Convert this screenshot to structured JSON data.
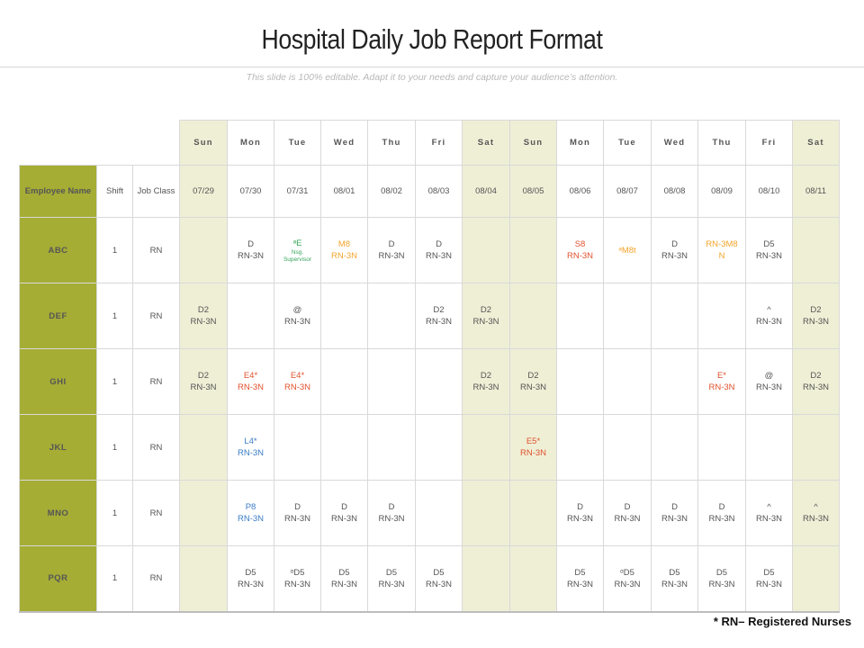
{
  "title": "Hospital Daily Job Report Format",
  "subtitle": "This slide is 100% editable. Adapt it to your needs and capture your audience’s attention.",
  "table": {
    "days": [
      "Sun",
      "Mon",
      "Tue",
      "Wed",
      "Thu",
      "Fri",
      "Sat",
      "Sun",
      "Mon",
      "Tue",
      "Wed",
      "Thu",
      "Fri",
      "Sat"
    ],
    "dates": [
      "07/29",
      "07/30",
      "07/31",
      "08/01",
      "08/02",
      "08/03",
      "08/04",
      "08/05",
      "08/06",
      "08/07",
      "08/08",
      "08/09",
      "08/10",
      "08/11"
    ],
    "weekend_cols": [
      0,
      6,
      7,
      13
    ],
    "header": {
      "employee": "Employee Name",
      "shift": "Shift",
      "job_class": "Job Class"
    },
    "rows": [
      {
        "name": "ABC",
        "shift": "1",
        "class": "RN",
        "cells": [
          [],
          [
            {
              "t": "D",
              "c": "gray"
            },
            {
              "t": "RN-3N",
              "c": "gray"
            }
          ],
          [
            {
              "t": "ᵃE",
              "c": "green"
            },
            {
              "t": "Nsg.",
              "c": "green",
              "s": "tiny"
            },
            {
              "t": "Supervisor",
              "c": "green",
              "s": "tiny"
            }
          ],
          [
            {
              "t": "M8",
              "c": "orange"
            },
            {
              "t": "RN-3N",
              "c": "orange"
            }
          ],
          [
            {
              "t": "D",
              "c": "gray"
            },
            {
              "t": "RN-3N",
              "c": "gray"
            }
          ],
          [
            {
              "t": "D",
              "c": "gray"
            },
            {
              "t": "RN-3N",
              "c": "gray"
            }
          ],
          [],
          [],
          [
            {
              "t": "S8",
              "c": "red"
            },
            {
              "t": "RN-3N",
              "c": "red"
            }
          ],
          [
            {
              "t": "ᵃM8t",
              "c": "orange"
            }
          ],
          [
            {
              "t": "D",
              "c": "gray"
            },
            {
              "t": "RN-3N",
              "c": "gray"
            }
          ],
          [
            {
              "t": "RN-3M8",
              "c": "orange"
            },
            {
              "t": "N",
              "c": "orange"
            }
          ],
          [
            {
              "t": "D5",
              "c": "gray"
            },
            {
              "t": "RN-3N",
              "c": "gray"
            }
          ],
          []
        ]
      },
      {
        "name": "DEF",
        "shift": "1",
        "class": "RN",
        "cells": [
          [
            {
              "t": "D2",
              "c": "gray"
            },
            {
              "t": "RN-3N",
              "c": "gray"
            }
          ],
          [],
          [
            {
              "t": "@",
              "c": "gray"
            },
            {
              "t": "RN-3N",
              "c": "gray"
            }
          ],
          [],
          [],
          [
            {
              "t": "D2",
              "c": "gray"
            },
            {
              "t": "RN-3N",
              "c": "gray"
            }
          ],
          [
            {
              "t": "D2",
              "c": "gray"
            },
            {
              "t": "RN-3N",
              "c": "gray"
            }
          ],
          [],
          [],
          [],
          [],
          [],
          [
            {
              "t": "^",
              "c": "gray"
            },
            {
              "t": "RN-3N",
              "c": "gray"
            }
          ],
          [
            {
              "t": "D2",
              "c": "gray"
            },
            {
              "t": "RN-3N",
              "c": "gray"
            }
          ]
        ]
      },
      {
        "name": "GHI",
        "shift": "1",
        "class": "RN",
        "cells": [
          [
            {
              "t": "D2",
              "c": "gray"
            },
            {
              "t": "RN-3N",
              "c": "gray"
            }
          ],
          [
            {
              "t": "E4*",
              "c": "red"
            },
            {
              "t": "RN-3N",
              "c": "red"
            }
          ],
          [
            {
              "t": "E4*",
              "c": "red"
            },
            {
              "t": "RN-3N",
              "c": "red"
            }
          ],
          [],
          [],
          [],
          [
            {
              "t": "D2",
              "c": "gray"
            },
            {
              "t": "RN-3N",
              "c": "gray"
            }
          ],
          [
            {
              "t": "D2",
              "c": "gray"
            },
            {
              "t": "RN-3N",
              "c": "gray"
            }
          ],
          [],
          [],
          [],
          [
            {
              "t": "E*",
              "c": "red"
            },
            {
              "t": "RN-3N",
              "c": "red"
            }
          ],
          [
            {
              "t": "@",
              "c": "gray"
            },
            {
              "t": "RN-3N",
              "c": "gray"
            }
          ],
          [
            {
              "t": "D2",
              "c": "gray"
            },
            {
              "t": "RN-3N",
              "c": "gray"
            }
          ]
        ]
      },
      {
        "name": "JKL",
        "shift": "1",
        "class": "RN",
        "cells": [
          [],
          [
            {
              "t": "L4*",
              "c": "blue"
            },
            {
              "t": "RN-3N",
              "c": "blue"
            }
          ],
          [],
          [],
          [],
          [],
          [],
          [
            {
              "t": "E5*",
              "c": "red"
            },
            {
              "t": "RN-3N",
              "c": "red"
            }
          ],
          [],
          [],
          [],
          [],
          [],
          []
        ]
      },
      {
        "name": "MNO",
        "shift": "1",
        "class": "RN",
        "cells": [
          [],
          [
            {
              "t": "P8",
              "c": "blue"
            },
            {
              "t": "RN-3N",
              "c": "blue"
            }
          ],
          [
            {
              "t": "D",
              "c": "gray"
            },
            {
              "t": "RN-3N",
              "c": "gray"
            }
          ],
          [
            {
              "t": "D",
              "c": "gray"
            },
            {
              "t": "RN-3N",
              "c": "gray"
            }
          ],
          [
            {
              "t": "D",
              "c": "gray"
            },
            {
              "t": "RN-3N",
              "c": "gray"
            }
          ],
          [],
          [],
          [],
          [
            {
              "t": "D",
              "c": "gray"
            },
            {
              "t": "RN-3N",
              "c": "gray"
            }
          ],
          [
            {
              "t": "D",
              "c": "gray"
            },
            {
              "t": "RN-3N",
              "c": "gray"
            }
          ],
          [
            {
              "t": "D",
              "c": "gray"
            },
            {
              "t": "RN-3N",
              "c": "gray"
            }
          ],
          [
            {
              "t": "D",
              "c": "gray"
            },
            {
              "t": "RN-3N",
              "c": "gray"
            }
          ],
          [
            {
              "t": "^",
              "c": "gray"
            },
            {
              "t": "RN-3N",
              "c": "gray"
            }
          ],
          [
            {
              "t": "^",
              "c": "gray"
            },
            {
              "t": "RN-3N",
              "c": "gray"
            }
          ]
        ]
      },
      {
        "name": "PQR",
        "shift": "1",
        "class": "RN",
        "cells": [
          [],
          [
            {
              "t": "D5",
              "c": "gray"
            },
            {
              "t": "RN-3N",
              "c": "gray"
            }
          ],
          [
            {
              "t": "ᵅD5",
              "c": "gray"
            },
            {
              "t": "RN-3N",
              "c": "gray"
            }
          ],
          [
            {
              "t": "D5",
              "c": "gray"
            },
            {
              "t": "RN-3N",
              "c": "gray"
            }
          ],
          [
            {
              "t": "D5",
              "c": "gray"
            },
            {
              "t": "RN-3N",
              "c": "gray"
            }
          ],
          [
            {
              "t": "D5",
              "c": "gray"
            },
            {
              "t": "RN-3N",
              "c": "gray"
            }
          ],
          [],
          [],
          [
            {
              "t": "D5",
              "c": "gray"
            },
            {
              "t": "RN-3N",
              "c": "gray"
            }
          ],
          [
            {
              "t": "ᵅD5",
              "c": "gray"
            },
            {
              "t": "RN-3N",
              "c": "gray"
            }
          ],
          [
            {
              "t": "D5",
              "c": "gray"
            },
            {
              "t": "RN-3N",
              "c": "gray"
            }
          ],
          [
            {
              "t": "D5",
              "c": "gray"
            },
            {
              "t": "RN-3N",
              "c": "gray"
            }
          ],
          [
            {
              "t": "D5",
              "c": "gray"
            },
            {
              "t": "RN-3N",
              "c": "gray"
            }
          ],
          []
        ]
      }
    ]
  },
  "footnote": "* RN– Registered Nurses"
}
